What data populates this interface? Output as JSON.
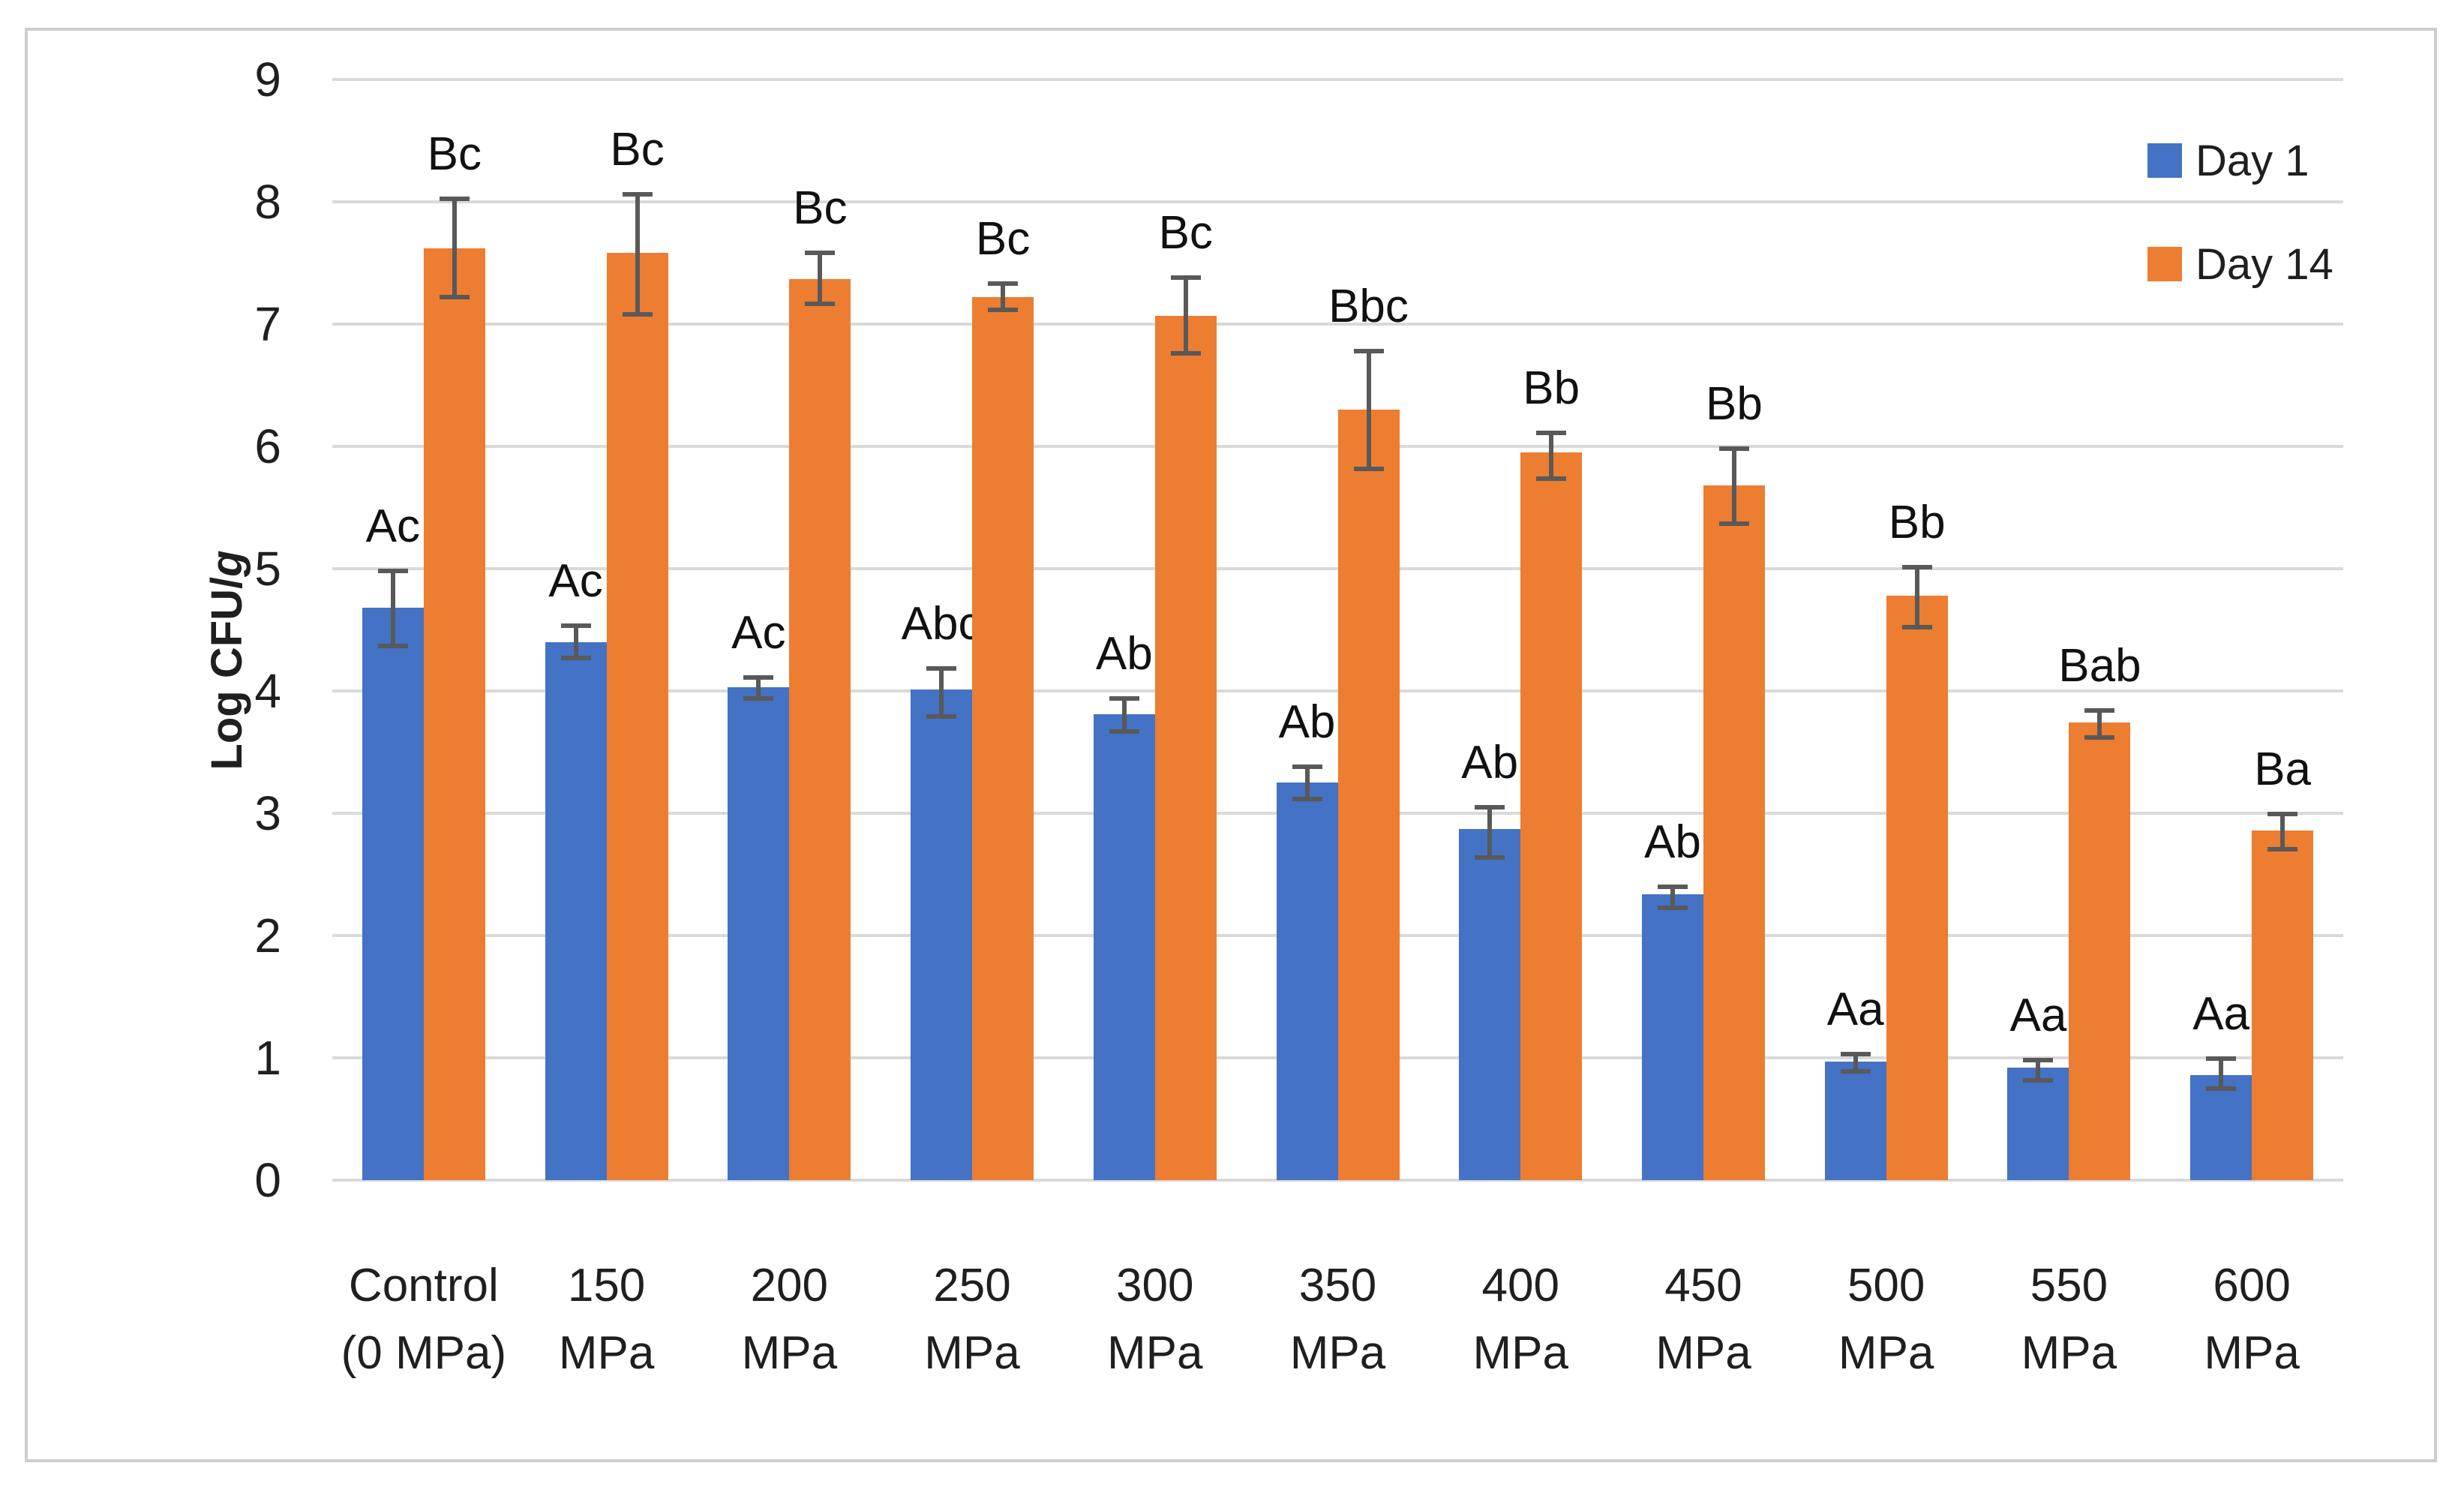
{
  "chart_data": {
    "type": "bar",
    "title": "",
    "ylabel": "Log CFU/g",
    "ylabel_main": "Log CFU/",
    "ylabel_italic": "g",
    "ylim": [
      0,
      9
    ],
    "ytick_step": 1,
    "yticks": [
      0,
      1,
      2,
      3,
      4,
      5,
      6,
      7,
      8,
      9
    ],
    "grid": true,
    "gridline_color": "#d9d9d9",
    "error_bar_color": "#595959",
    "axis_text_color": "#1f1f1f",
    "legend_position": "inside-top-right",
    "categories": [
      {
        "line1": "Control",
        "line2": "(0 MPa)"
      },
      {
        "line1": "150",
        "line2": "MPa"
      },
      {
        "line1": "200",
        "line2": "MPa"
      },
      {
        "line1": "250",
        "line2": "MPa"
      },
      {
        "line1": "300",
        "line2": "MPa"
      },
      {
        "line1": "350",
        "line2": "MPa"
      },
      {
        "line1": "400",
        "line2": "MPa"
      },
      {
        "line1": "450",
        "line2": "MPa"
      },
      {
        "line1": "500",
        "line2": "MPa"
      },
      {
        "line1": "550",
        "line2": "MPa"
      },
      {
        "line1": "600",
        "line2": "MPa"
      }
    ],
    "series": [
      {
        "name": "Day 1",
        "color": "#4472C4",
        "values": [
          4.68,
          4.4,
          4.03,
          4.01,
          3.81,
          3.25,
          2.87,
          2.34,
          0.97,
          0.92,
          0.86
        ],
        "err_up": [
          0.32,
          0.15,
          0.1,
          0.19,
          0.15,
          0.15,
          0.2,
          0.08,
          0.08,
          0.08,
          0.15
        ],
        "err_down": [
          0.33,
          0.15,
          0.11,
          0.24,
          0.16,
          0.15,
          0.25,
          0.13,
          0.1,
          0.12,
          0.13
        ],
        "letters": [
          "Ac",
          "Ac",
          "Ac",
          "Abc",
          "Ab",
          "Ab",
          "Ab",
          "Ab",
          "Aa",
          "Aa",
          "Aa"
        ]
      },
      {
        "name": "Day 14",
        "color": "#ED7D31",
        "values": [
          7.62,
          7.58,
          7.37,
          7.22,
          7.07,
          6.3,
          5.95,
          5.68,
          4.78,
          3.74,
          2.86
        ],
        "err_up": [
          0.42,
          0.5,
          0.23,
          0.13,
          0.33,
          0.5,
          0.18,
          0.32,
          0.25,
          0.12,
          0.15
        ],
        "err_down": [
          0.42,
          0.52,
          0.22,
          0.12,
          0.33,
          0.5,
          0.23,
          0.33,
          0.28,
          0.14,
          0.17
        ],
        "letters": [
          "Bc",
          "Bc",
          "Bc",
          "Bc",
          "Bc",
          "Bbc",
          "Bb",
          "Bb",
          "Bb",
          "Bab",
          "Ba"
        ]
      }
    ]
  },
  "legend": {
    "items": [
      {
        "label": "Day 1"
      },
      {
        "label": "Day 14"
      }
    ]
  }
}
